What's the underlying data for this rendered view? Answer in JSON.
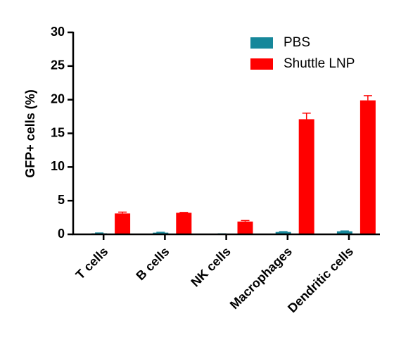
{
  "chart_data": {
    "type": "bar",
    "y_label": "GFP+ cells (%)",
    "categories": [
      "T cells",
      "B cells",
      "NK cells",
      "Macrophages",
      "Dendritic cells"
    ],
    "series": [
      {
        "name": "PBS",
        "color": "#16879a",
        "values": [
          0.15,
          0.25,
          0.05,
          0.35,
          0.45
        ],
        "errors": [
          0.05,
          0.05,
          0.02,
          0.05,
          0.05
        ]
      },
      {
        "name": "Shuttle LNP",
        "color": "#ff0000",
        "values": [
          3.1,
          3.2,
          1.9,
          17.1,
          19.9
        ],
        "errors": [
          0.2,
          0.05,
          0.15,
          0.9,
          0.7
        ]
      }
    ],
    "ylim": [
      0,
      30
    ],
    "yticks": [
      0,
      5,
      10,
      15,
      20,
      25,
      30
    ],
    "legend": "top-right"
  }
}
